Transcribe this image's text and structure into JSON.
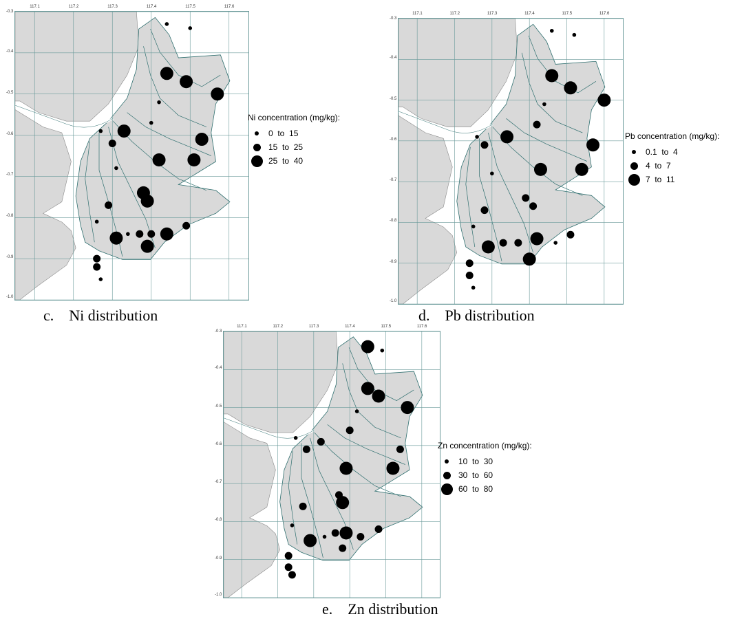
{
  "axes": {
    "lon_ticks": [
      "117.1",
      "117.2",
      "117.3",
      "117.4",
      "117.5",
      "117.6"
    ],
    "lat_ticks": [
      "-0.3",
      "-0.4",
      "-0.5",
      "-0.6",
      "-0.7",
      "-0.8",
      "-0.9",
      "-1.0"
    ]
  },
  "colors": {
    "land": "#d9d9d9",
    "channels": "#2f6f6f",
    "grid": "#6a9a9a",
    "sample_dot": "#000000"
  },
  "panels": [
    {
      "id": "ni",
      "caption": "c.    Ni distribution",
      "legend_title": "Ni concentration (mg/kg):",
      "classes": [
        {
          "label": "0  to  15",
          "size": "small"
        },
        {
          "label": "15  to  25",
          "size": "medium"
        },
        {
          "label": "25  to  40",
          "size": "large"
        }
      ],
      "samples": [
        {
          "lon": 117.44,
          "lat": -0.33,
          "cls": 0
        },
        {
          "lon": 117.5,
          "lat": -0.34,
          "cls": 0
        },
        {
          "lon": 117.44,
          "lat": -0.45,
          "cls": 2
        },
        {
          "lon": 117.49,
          "lat": -0.47,
          "cls": 2
        },
        {
          "lon": 117.57,
          "lat": -0.5,
          "cls": 2
        },
        {
          "lon": 117.42,
          "lat": -0.52,
          "cls": 0
        },
        {
          "lon": 117.4,
          "lat": -0.57,
          "cls": 0
        },
        {
          "lon": 117.27,
          "lat": -0.59,
          "cls": 0
        },
        {
          "lon": 117.33,
          "lat": -0.59,
          "cls": 2
        },
        {
          "lon": 117.3,
          "lat": -0.62,
          "cls": 1
        },
        {
          "lon": 117.53,
          "lat": -0.61,
          "cls": 2
        },
        {
          "lon": 117.42,
          "lat": -0.66,
          "cls": 2
        },
        {
          "lon": 117.51,
          "lat": -0.66,
          "cls": 2
        },
        {
          "lon": 117.31,
          "lat": -0.68,
          "cls": 0
        },
        {
          "lon": 117.38,
          "lat": -0.74,
          "cls": 2
        },
        {
          "lon": 117.39,
          "lat": -0.76,
          "cls": 2
        },
        {
          "lon": 117.29,
          "lat": -0.77,
          "cls": 1
        },
        {
          "lon": 117.26,
          "lat": -0.81,
          "cls": 0
        },
        {
          "lon": 117.49,
          "lat": -0.82,
          "cls": 1
        },
        {
          "lon": 117.37,
          "lat": -0.84,
          "cls": 1
        },
        {
          "lon": 117.4,
          "lat": -0.84,
          "cls": 1
        },
        {
          "lon": 117.44,
          "lat": -0.84,
          "cls": 2
        },
        {
          "lon": 117.31,
          "lat": -0.85,
          "cls": 2
        },
        {
          "lon": 117.34,
          "lat": -0.84,
          "cls": 0
        },
        {
          "lon": 117.39,
          "lat": -0.87,
          "cls": 2
        },
        {
          "lon": 117.26,
          "lat": -0.9,
          "cls": 1
        },
        {
          "lon": 117.26,
          "lat": -0.92,
          "cls": 1
        },
        {
          "lon": 117.27,
          "lat": -0.95,
          "cls": 0
        }
      ]
    },
    {
      "id": "pb",
      "caption": "d.    Pb distribution",
      "legend_title": "Pb concentration (mg/kg):",
      "classes": [
        {
          "label": "0.1  to  4",
          "size": "small"
        },
        {
          "label": "4  to  7",
          "size": "medium"
        },
        {
          "label": "7  to  11",
          "size": "large"
        }
      ],
      "samples": [
        {
          "lon": 117.46,
          "lat": -0.33,
          "cls": 0
        },
        {
          "lon": 117.52,
          "lat": -0.34,
          "cls": 0
        },
        {
          "lon": 117.46,
          "lat": -0.44,
          "cls": 2
        },
        {
          "lon": 117.51,
          "lat": -0.47,
          "cls": 2
        },
        {
          "lon": 117.6,
          "lat": -0.5,
          "cls": 2
        },
        {
          "lon": 117.44,
          "lat": -0.51,
          "cls": 0
        },
        {
          "lon": 117.42,
          "lat": -0.56,
          "cls": 1
        },
        {
          "lon": 117.26,
          "lat": -0.59,
          "cls": 0
        },
        {
          "lon": 117.34,
          "lat": -0.59,
          "cls": 2
        },
        {
          "lon": 117.28,
          "lat": -0.61,
          "cls": 1
        },
        {
          "lon": 117.57,
          "lat": -0.61,
          "cls": 2
        },
        {
          "lon": 117.43,
          "lat": -0.67,
          "cls": 2
        },
        {
          "lon": 117.54,
          "lat": -0.67,
          "cls": 2
        },
        {
          "lon": 117.3,
          "lat": -0.68,
          "cls": 0
        },
        {
          "lon": 117.39,
          "lat": -0.74,
          "cls": 1
        },
        {
          "lon": 117.41,
          "lat": -0.76,
          "cls": 1
        },
        {
          "lon": 117.28,
          "lat": -0.77,
          "cls": 1
        },
        {
          "lon": 117.25,
          "lat": -0.81,
          "cls": 0
        },
        {
          "lon": 117.51,
          "lat": -0.83,
          "cls": 1
        },
        {
          "lon": 117.37,
          "lat": -0.85,
          "cls": 1
        },
        {
          "lon": 117.42,
          "lat": -0.84,
          "cls": 2
        },
        {
          "lon": 117.47,
          "lat": -0.85,
          "cls": 0
        },
        {
          "lon": 117.29,
          "lat": -0.86,
          "cls": 2
        },
        {
          "lon": 117.33,
          "lat": -0.85,
          "cls": 1
        },
        {
          "lon": 117.4,
          "lat": -0.89,
          "cls": 2
        },
        {
          "lon": 117.24,
          "lat": -0.9,
          "cls": 1
        },
        {
          "lon": 117.24,
          "lat": -0.93,
          "cls": 1
        },
        {
          "lon": 117.25,
          "lat": -0.96,
          "cls": 0
        }
      ]
    },
    {
      "id": "zn",
      "caption": "e.    Zn distribution",
      "legend_title": "Zn concentration (mg/kg):",
      "classes": [
        {
          "label": "10  to  30",
          "size": "small"
        },
        {
          "label": "30  to  60",
          "size": "medium"
        },
        {
          "label": "60  to  80",
          "size": "large"
        }
      ],
      "samples": [
        {
          "lon": 117.45,
          "lat": -0.34,
          "cls": 2
        },
        {
          "lon": 117.49,
          "lat": -0.35,
          "cls": 0
        },
        {
          "lon": 117.45,
          "lat": -0.45,
          "cls": 2
        },
        {
          "lon": 117.48,
          "lat": -0.47,
          "cls": 2
        },
        {
          "lon": 117.56,
          "lat": -0.5,
          "cls": 2
        },
        {
          "lon": 117.42,
          "lat": -0.51,
          "cls": 0
        },
        {
          "lon": 117.4,
          "lat": -0.56,
          "cls": 1
        },
        {
          "lon": 117.25,
          "lat": -0.58,
          "cls": 0
        },
        {
          "lon": 117.32,
          "lat": -0.59,
          "cls": 1
        },
        {
          "lon": 117.28,
          "lat": -0.61,
          "cls": 1
        },
        {
          "lon": 117.54,
          "lat": -0.61,
          "cls": 1
        },
        {
          "lon": 117.39,
          "lat": -0.66,
          "cls": 2
        },
        {
          "lon": 117.52,
          "lat": -0.66,
          "cls": 2
        },
        {
          "lon": 117.37,
          "lat": -0.73,
          "cls": 1
        },
        {
          "lon": 117.38,
          "lat": -0.75,
          "cls": 2
        },
        {
          "lon": 117.27,
          "lat": -0.76,
          "cls": 1
        },
        {
          "lon": 117.24,
          "lat": -0.81,
          "cls": 0
        },
        {
          "lon": 117.48,
          "lat": -0.82,
          "cls": 1
        },
        {
          "lon": 117.36,
          "lat": -0.83,
          "cls": 1
        },
        {
          "lon": 117.39,
          "lat": -0.83,
          "cls": 2
        },
        {
          "lon": 117.43,
          "lat": -0.84,
          "cls": 1
        },
        {
          "lon": 117.29,
          "lat": -0.85,
          "cls": 2
        },
        {
          "lon": 117.33,
          "lat": -0.84,
          "cls": 0
        },
        {
          "lon": 117.38,
          "lat": -0.87,
          "cls": 1
        },
        {
          "lon": 117.23,
          "lat": -0.89,
          "cls": 1
        },
        {
          "lon": 117.23,
          "lat": -0.92,
          "cls": 1
        },
        {
          "lon": 117.24,
          "lat": -0.94,
          "cls": 1
        }
      ]
    }
  ]
}
